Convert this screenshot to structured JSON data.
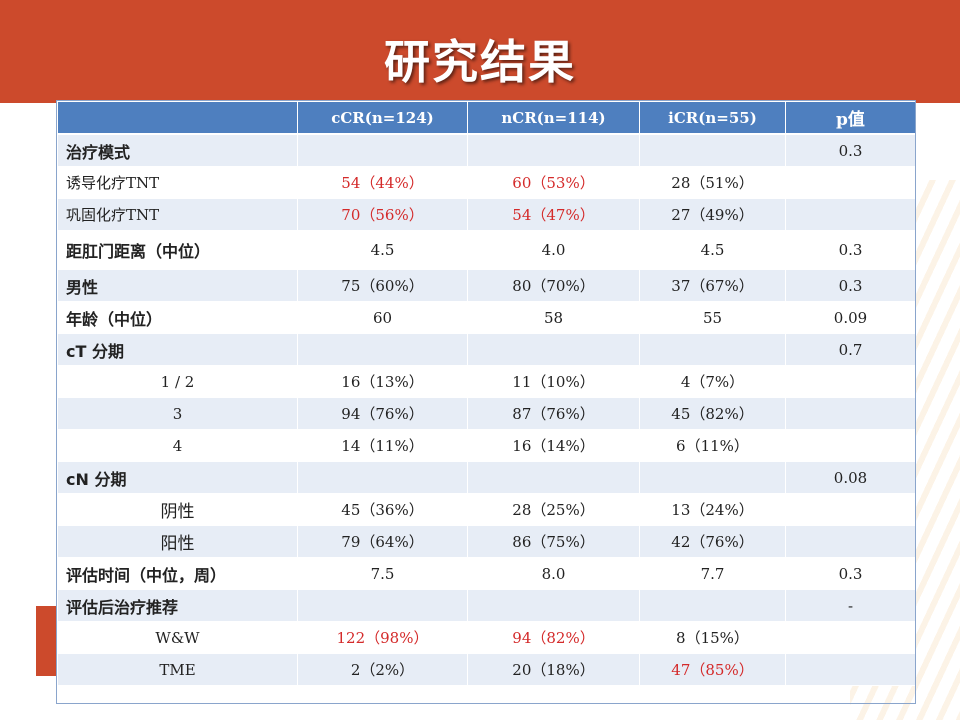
{
  "page": {
    "title": "研究结果"
  },
  "colors": {
    "banner": "#cc4a2c",
    "header": "#4e7fbf",
    "highlight": "#d42a2a"
  },
  "table": {
    "headers": [
      "",
      "cCR(n=124)",
      "nCR(n=114)",
      "iCR(n=55)",
      "p值"
    ],
    "rows": [
      {
        "label": "治疗模式",
        "cells": [
          "",
          "",
          "",
          "0.3"
        ],
        "kind": "group"
      },
      {
        "label": "诱导化疗TNT",
        "cells": [
          "54（44%）",
          "60（53%）",
          "28（51%）",
          ""
        ],
        "kind": "sub",
        "red": [
          0,
          1
        ]
      },
      {
        "label": "巩固化疗TNT",
        "cells": [
          "70（56%）",
          "54（47%）",
          "27（49%）",
          ""
        ],
        "kind": "sub",
        "red": [
          0,
          1
        ]
      },
      {
        "label": "距肛门距离（中位）",
        "cells": [
          "4.5",
          "4.0",
          "4.5",
          "0.3"
        ],
        "kind": "group",
        "tall": true
      },
      {
        "label": "男性",
        "cells": [
          "75（60%）",
          "80（70%）",
          "37（67%）",
          "0.3"
        ],
        "kind": "group"
      },
      {
        "label": "年龄（中位）",
        "cells": [
          "60",
          "58",
          "55",
          "0.09"
        ],
        "kind": "group"
      },
      {
        "label": "cT 分期",
        "cells": [
          "",
          "",
          "",
          "0.7"
        ],
        "kind": "group"
      },
      {
        "label": "1 / 2",
        "cells": [
          "16（13%）",
          "11（10%）",
          "4（7%）",
          ""
        ],
        "kind": "center"
      },
      {
        "label": "3",
        "cells": [
          "94（76%）",
          "87（76%）",
          "45（82%）",
          ""
        ],
        "kind": "center"
      },
      {
        "label": "4",
        "cells": [
          "14（11%）",
          "16（14%）",
          "6（11%）",
          ""
        ],
        "kind": "center"
      },
      {
        "label": "cN 分期",
        "cells": [
          "",
          "",
          "",
          "0.08"
        ],
        "kind": "group"
      },
      {
        "label": "阴性",
        "cells": [
          "45（36%）",
          "28（25%）",
          "13（24%）",
          ""
        ],
        "kind": "center-large"
      },
      {
        "label": "阳性",
        "cells": [
          "79（64%）",
          "86（75%）",
          "42（76%）",
          ""
        ],
        "kind": "center-large"
      },
      {
        "label": "评估时间（中位，周）",
        "cells": [
          "7.5",
          "8.0",
          "7.7",
          "0.3"
        ],
        "kind": "group"
      },
      {
        "label": "评估后治疗推荐",
        "cells": [
          "",
          "",
          "",
          "-"
        ],
        "kind": "group"
      },
      {
        "label": "W&W",
        "cells": [
          "122（98%）",
          "94（82%）",
          "8（15%）",
          ""
        ],
        "kind": "center",
        "red": [
          0,
          1
        ]
      },
      {
        "label": "TME",
        "cells": [
          "2（2%）",
          "20（18%）",
          "47（85%）",
          ""
        ],
        "kind": "center",
        "red": [
          2
        ]
      }
    ]
  }
}
